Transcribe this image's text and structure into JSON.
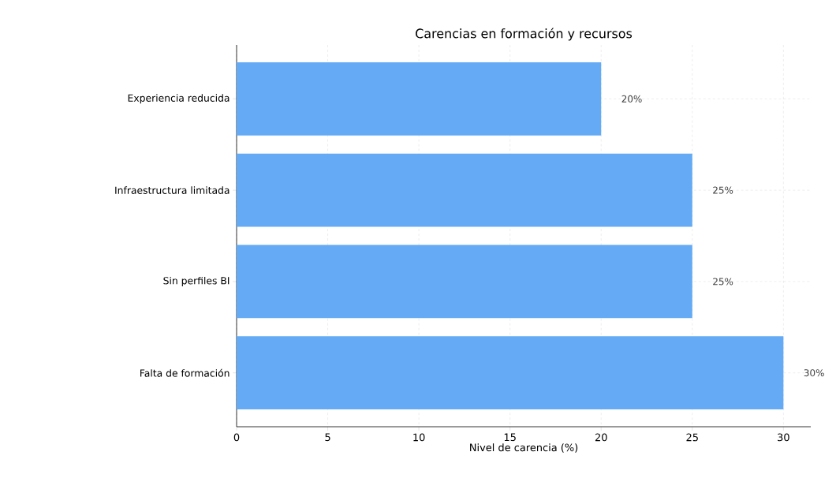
{
  "chart_data": {
    "type": "bar",
    "orientation": "horizontal",
    "title": "Carencias en formación y recursos",
    "xlabel": "Nivel de carencia (%)",
    "categories": [
      "Experiencia reducida",
      "Infraestructura limitada",
      "Sin perfiles BI",
      "Falta de formación"
    ],
    "values": [
      20,
      25,
      25,
      30
    ],
    "color": "#64aaf5",
    "value_labels": [
      "20%",
      "25%",
      "25%",
      "30%"
    ],
    "xlim": [
      0,
      31.5
    ],
    "xticks": [
      0,
      5,
      10,
      15,
      20,
      25,
      30
    ],
    "grid": true
  }
}
